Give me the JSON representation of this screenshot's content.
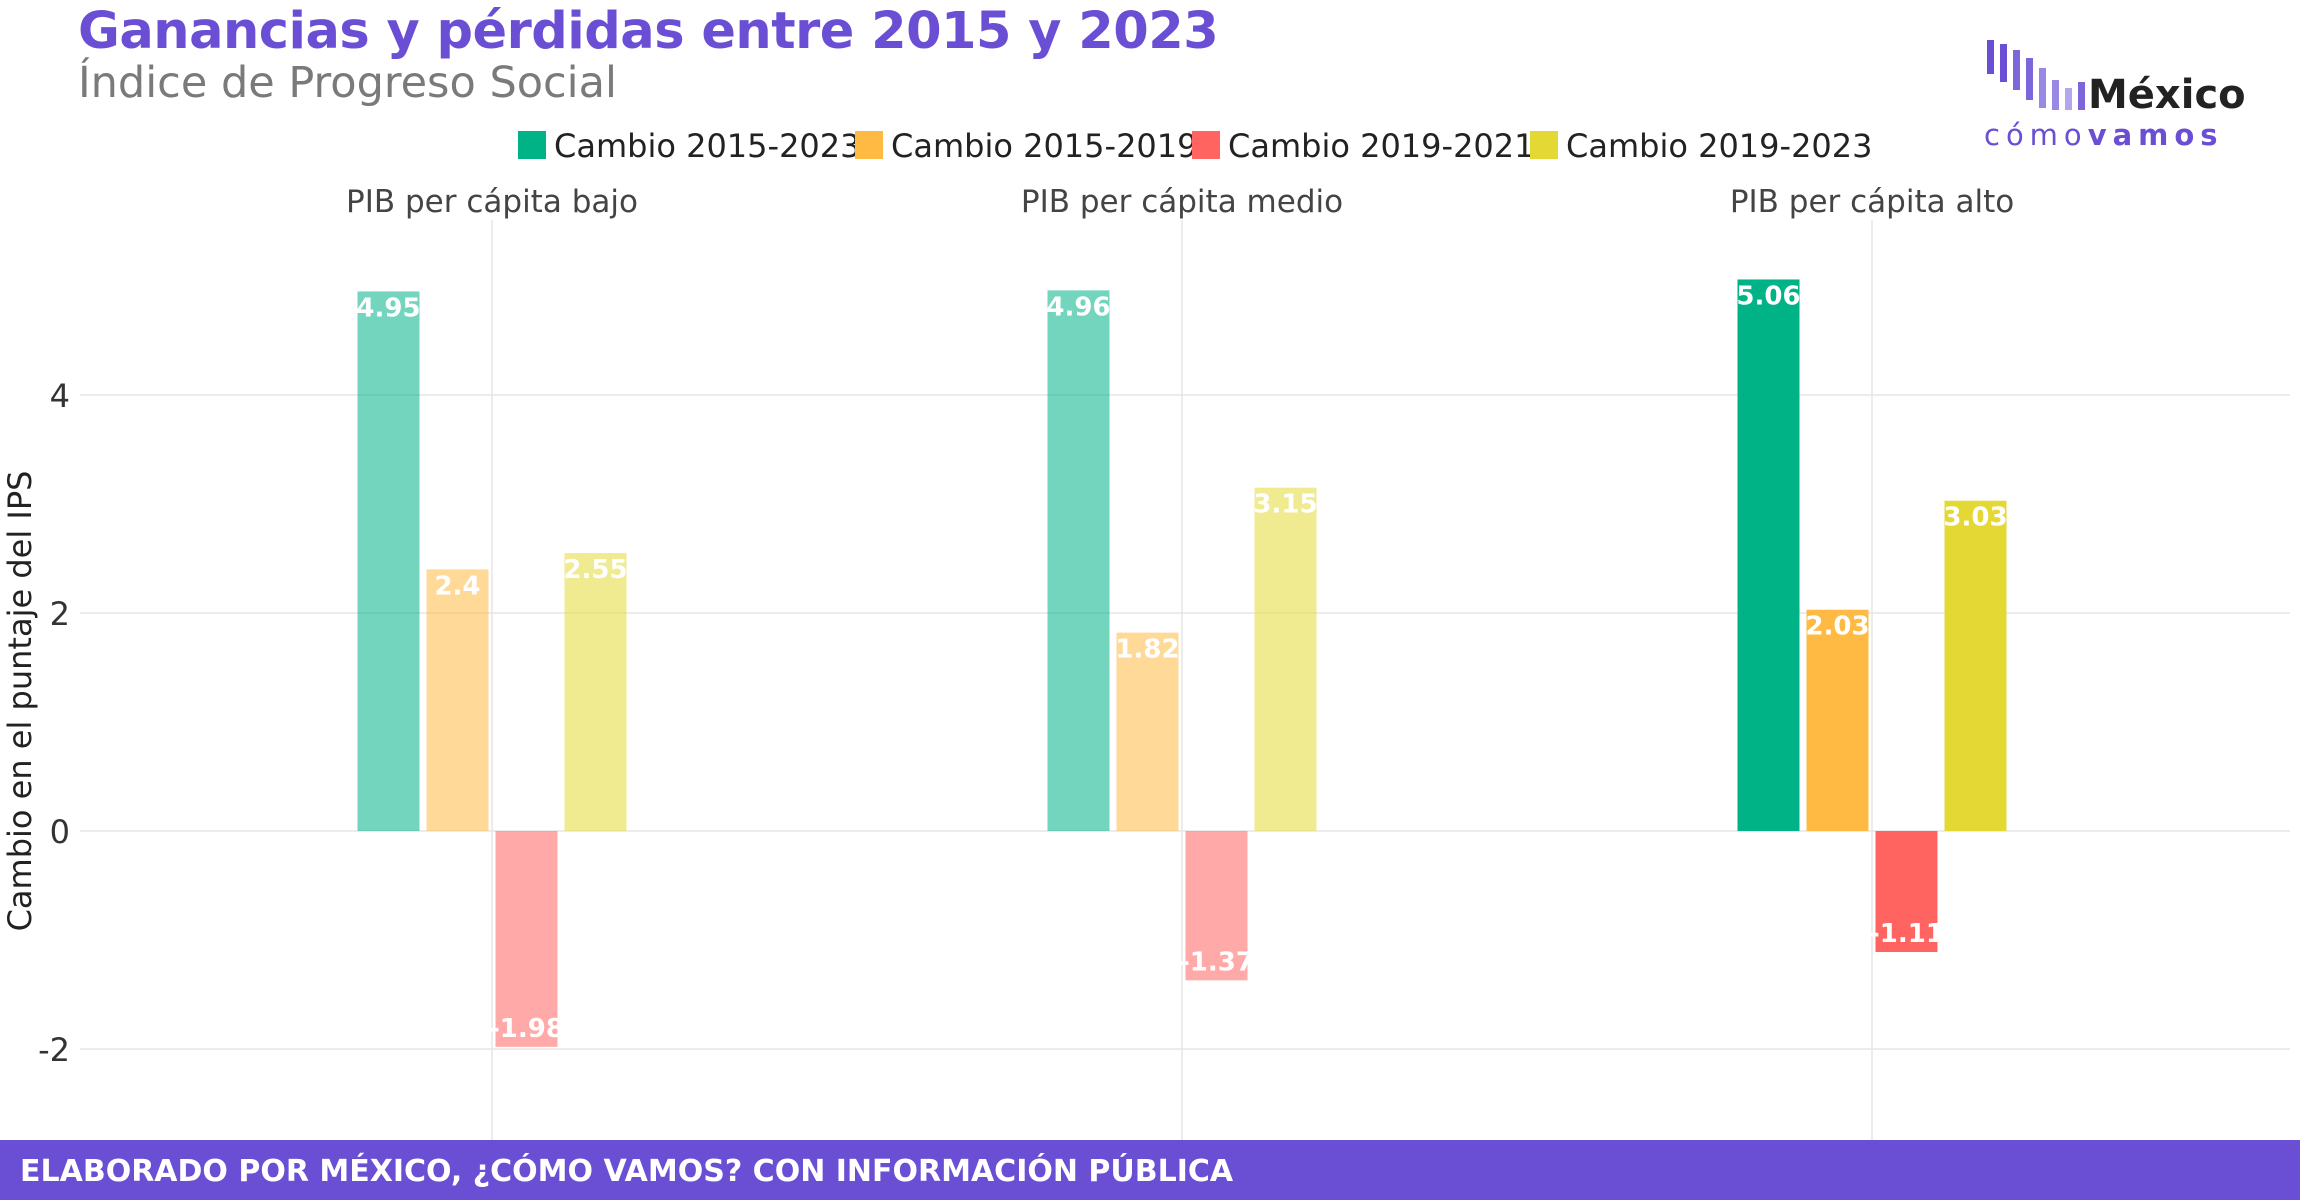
{
  "title": "Ganancias y pérdidas entre 2015 y 2023",
  "subtitle": "Índice de Progreso Social",
  "logo": {
    "word": "México",
    "sub_regular": "cómo",
    "sub_bold": "vamos"
  },
  "footer": "ELABORADO POR MÉXICO, ¿CÓMO VAMOS? CON INFORMACIÓN PÚBLICA",
  "chart_data": {
    "type": "bar",
    "ylabel": "Cambio en el puntaje del IPS",
    "ylim": [
      -2.7,
      5.4
    ],
    "yticks": [
      -2,
      0,
      2,
      4
    ],
    "grid": true,
    "legend_position": "top",
    "panels": [
      "PIB per cápita bajo",
      "PIB per cápita medio",
      "PIB per cápita alto"
    ],
    "highlighted_panel": 2,
    "series": [
      {
        "name": "Cambio 2015-2023",
        "color": "#00b386",
        "values": [
          4.95,
          4.96,
          5.06
        ]
      },
      {
        "name": "Cambio 2015-2019",
        "color": "#ffba44",
        "values": [
          2.4,
          1.82,
          2.03
        ]
      },
      {
        "name": "Cambio 2019-2021",
        "color": "#ff6460",
        "values": [
          -1.98,
          -1.37,
          -1.11
        ]
      },
      {
        "name": "Cambio 2019-2023",
        "color": "#e4d934",
        "values": [
          2.55,
          3.15,
          3.03
        ]
      }
    ]
  }
}
